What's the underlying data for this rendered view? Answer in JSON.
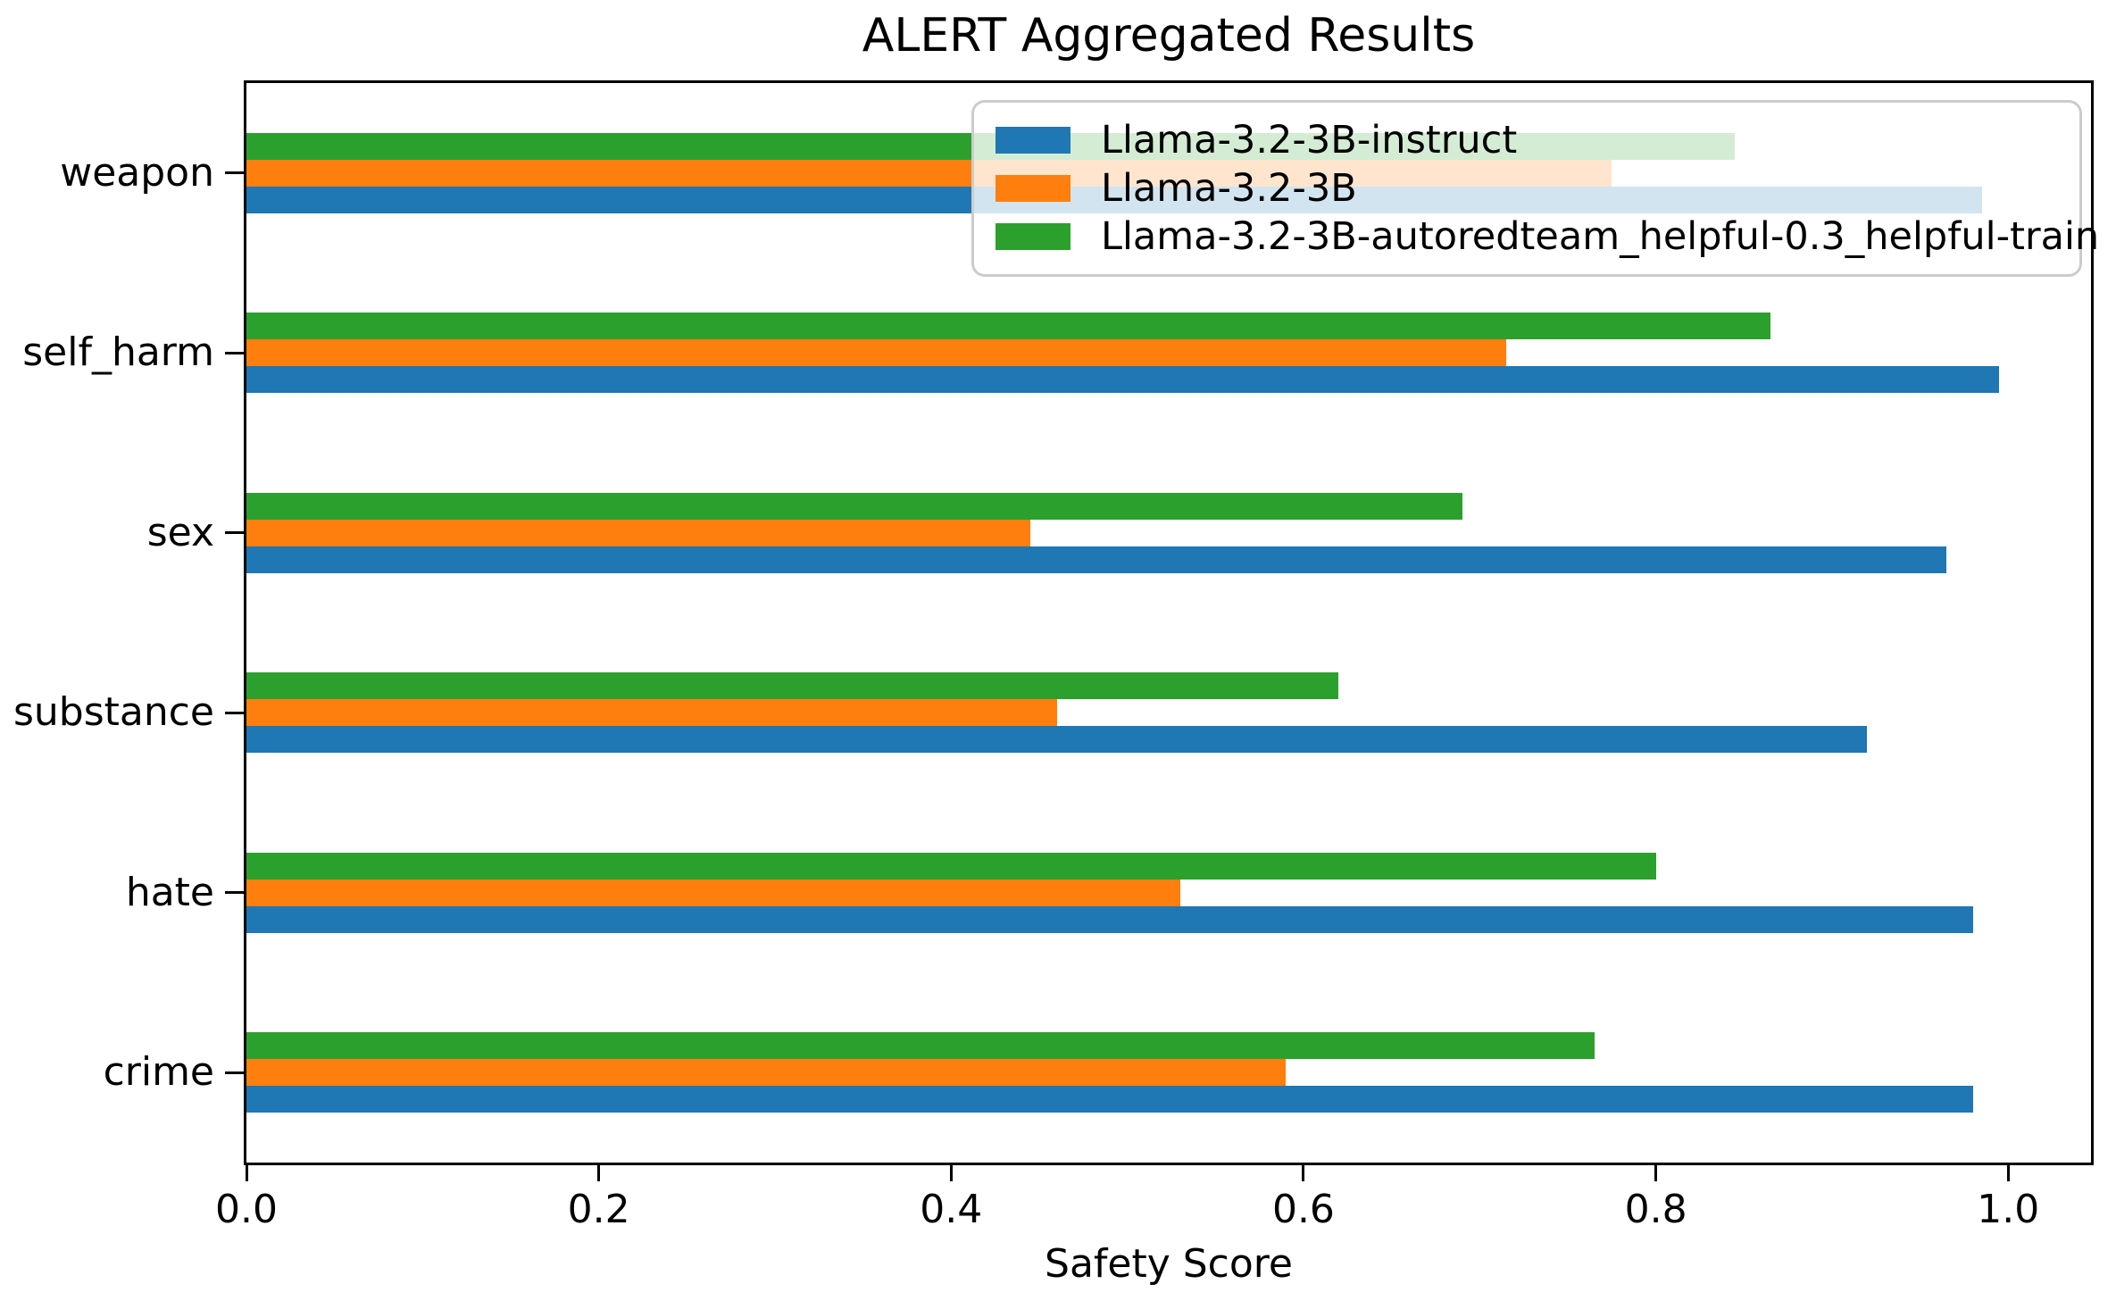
{
  "figure": {
    "background_color": "#ffffff",
    "text_color": "#000000"
  },
  "chart_data": {
    "type": "bar",
    "orientation": "horizontal",
    "title": "ALERT Aggregated Results",
    "xlabel": "Safety Score",
    "ylabel": "",
    "grid": false,
    "categories_top_to_bottom": [
      "weapon",
      "self_harm",
      "sex",
      "substance",
      "hate",
      "crime"
    ],
    "series": [
      {
        "name": "Llama-3.2-3B-instruct",
        "color": "#1f77b4",
        "values": [
          0.985,
          0.995,
          0.965,
          0.92,
          0.98,
          0.98
        ]
      },
      {
        "name": "Llama-3.2-3B",
        "color": "#ff7f0e",
        "values": [
          0.775,
          0.715,
          0.445,
          0.46,
          0.53,
          0.59
        ]
      },
      {
        "name": "Llama-3.2-3B-autoredteam_helpful-0.3_helpful-train",
        "color": "#2ca02c",
        "values": [
          0.845,
          0.865,
          0.69,
          0.62,
          0.8,
          0.765
        ]
      }
    ],
    "bar_stack_order_note": "within each category group, bars top-to-bottom are series index 2 (green), 1 (orange), 0 (blue)",
    "xlim": [
      0.0,
      1.047
    ],
    "xticks": [
      0.0,
      0.2,
      0.4,
      0.6,
      0.8,
      1.0
    ],
    "xtick_labels": [
      "0.0",
      "0.2",
      "0.4",
      "0.6",
      "0.8",
      "1.0"
    ],
    "legend": {
      "position": "upper right",
      "frame_alpha": 0.8,
      "border_color": "#cccccc",
      "entries": [
        "Llama-3.2-3B-instruct",
        "Llama-3.2-3B",
        "Llama-3.2-3B-autoredteam_helpful-0.3_helpful-train"
      ]
    }
  }
}
